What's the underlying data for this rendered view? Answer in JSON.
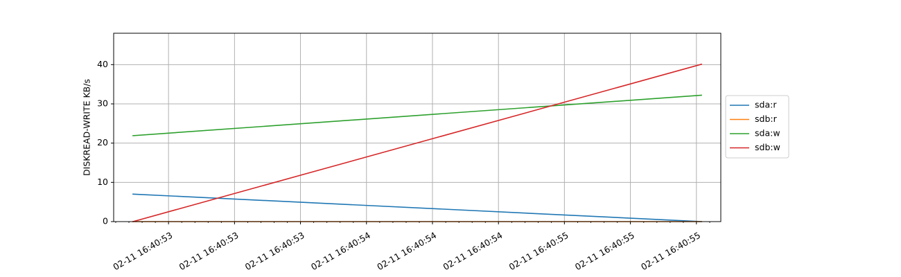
{
  "chart_data": {
    "type": "line",
    "ylabel": "DISKREAD-WRITE KB/s",
    "xlabel": "",
    "ylim": [
      0,
      48
    ],
    "yticks": [
      0,
      10,
      20,
      30,
      40
    ],
    "xlim": [
      -0.034,
      1.034
    ],
    "xtick_positions": [
      0.0625,
      0.1786,
      0.2946,
      0.4107,
      0.5268,
      0.6429,
      0.7589,
      0.875,
      0.9911
    ],
    "xtick_labels": [
      "02-11 16:40:53",
      "02-11 16:40:53",
      "02-11 16:40:53",
      "02-11 16:40:54",
      "02-11 16:40:54",
      "02-11 16:40:54",
      "02-11 16:40:55",
      "02-11 16:40:55",
      "02-11 16:40:55"
    ],
    "x": [
      0,
      1
    ],
    "grid": true,
    "legend_position": "right, outside",
    "series": [
      {
        "name": "sda:r",
        "color": "#1f77b4",
        "values": [
          7.0,
          0.0
        ]
      },
      {
        "name": "sdb:r",
        "color": "#ff7f0e",
        "values": [
          0.0,
          0.0
        ]
      },
      {
        "name": "sda:w",
        "color": "#2ca02c",
        "values": [
          21.9,
          32.2
        ]
      },
      {
        "name": "sdb:w",
        "color": "#d62728",
        "values": [
          0.0,
          40.1
        ]
      }
    ]
  }
}
